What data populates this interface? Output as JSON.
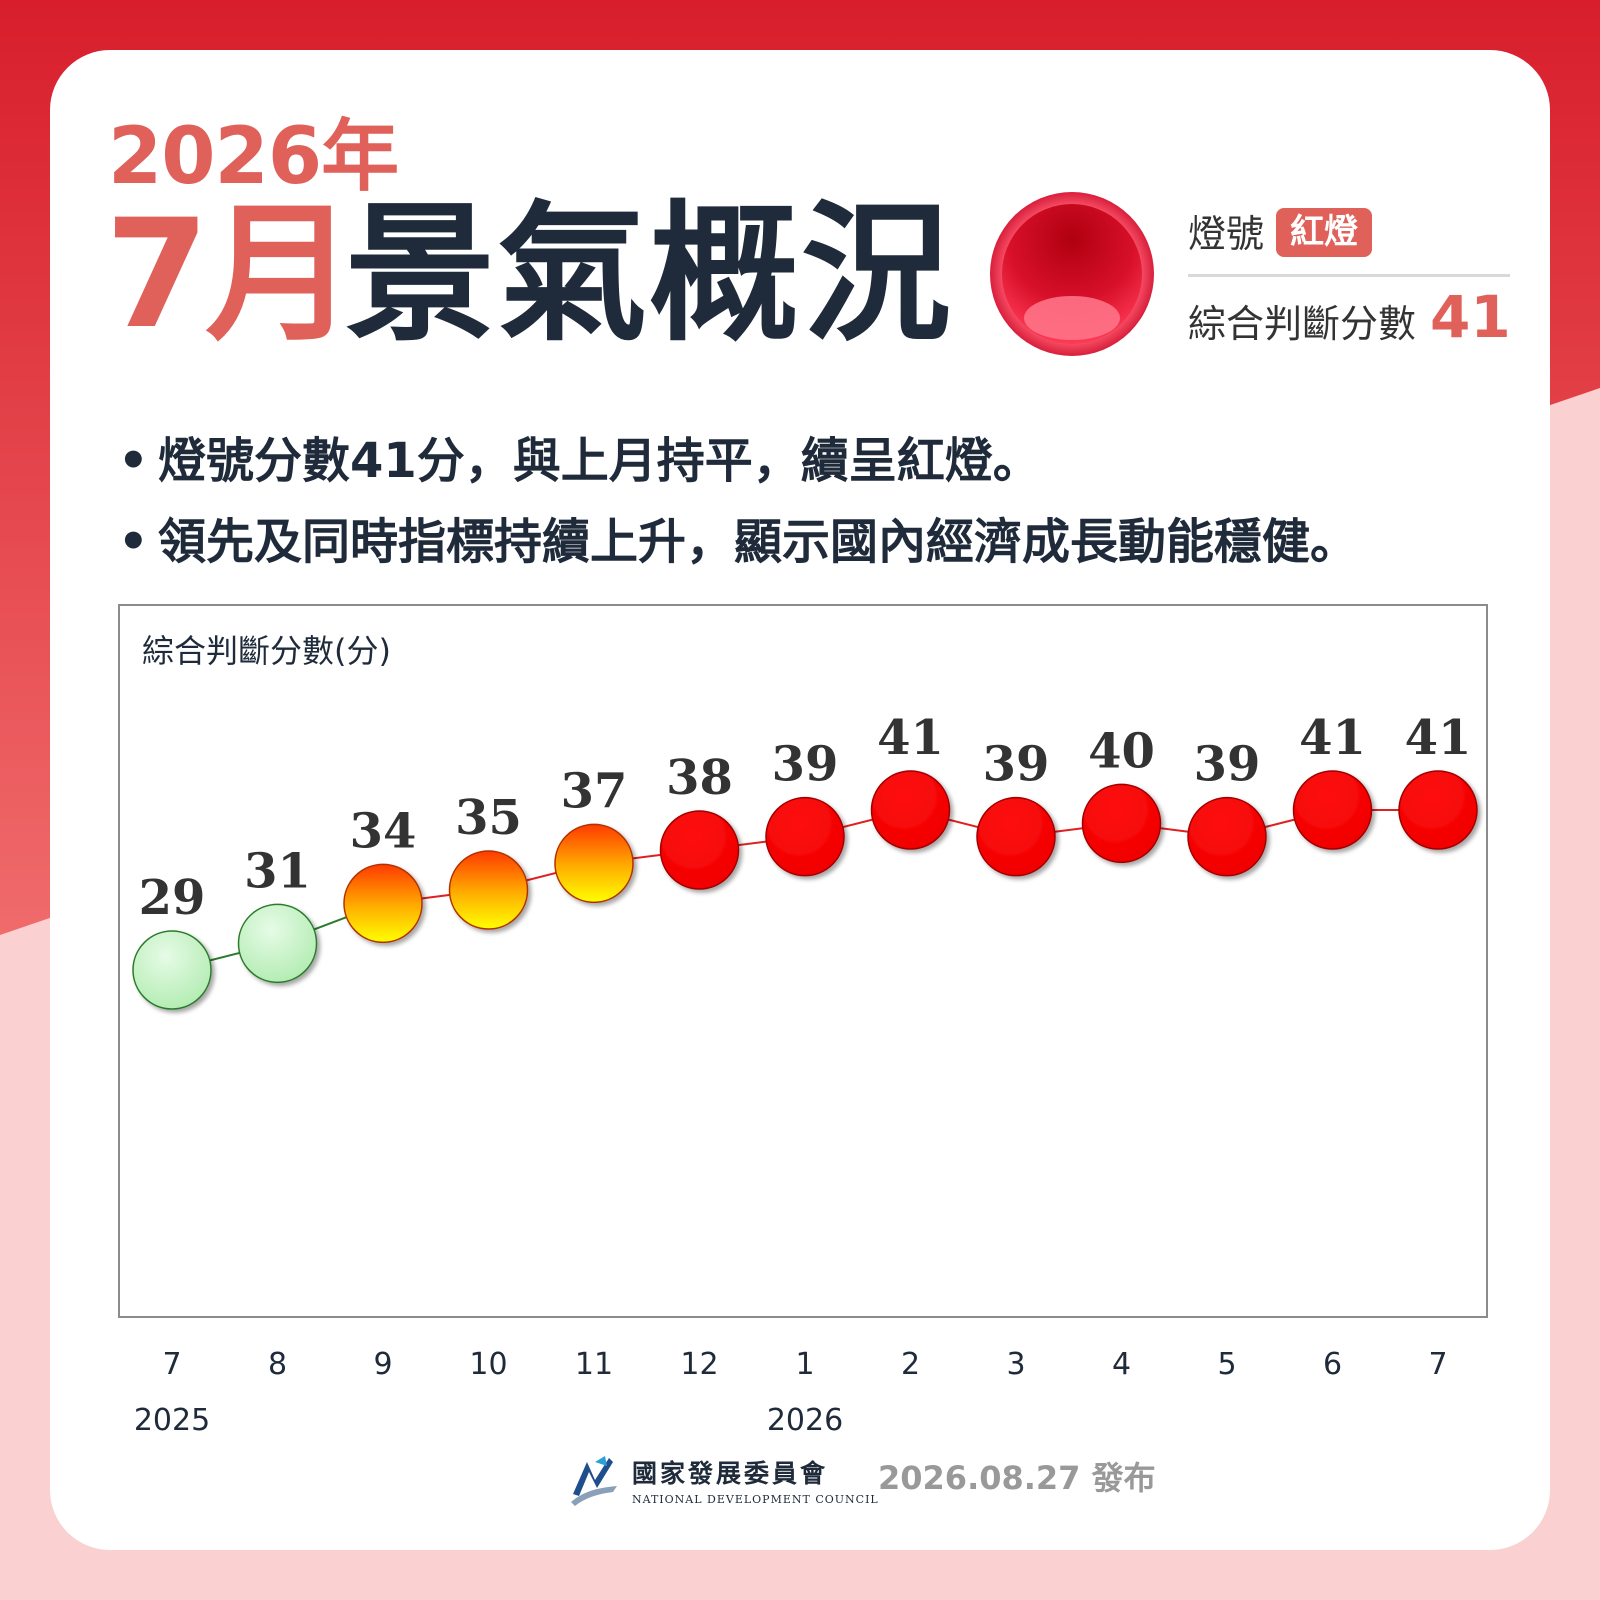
{
  "header": {
    "year_title": "2026年",
    "month_title": "7月",
    "main_title": "景氣概況",
    "lamp_label": "燈號",
    "lamp_value": "紅燈",
    "score_label": "綜合判斷分數",
    "score_value": "41"
  },
  "bullets": [
    "燈號分數41分，與上月持平，續呈紅燈。",
    "領先及同時指標持續上升，顯示國內經濟成長動能穩健。"
  ],
  "chart_data": {
    "type": "line",
    "ylabel": "綜合判斷分數(分)",
    "categories": [
      "7",
      "8",
      "9",
      "10",
      "11",
      "12",
      "1",
      "2",
      "3",
      "4",
      "5",
      "6",
      "7"
    ],
    "year_labels": [
      {
        "label": "2025",
        "index": 0
      },
      {
        "label": "2026",
        "index": 6
      }
    ],
    "values": [
      29,
      31,
      34,
      35,
      37,
      38,
      39,
      41,
      39,
      40,
      39,
      41,
      41
    ],
    "signals": [
      "green",
      "green",
      "yellow-red",
      "yellow-red",
      "yellow-red",
      "red",
      "red",
      "red",
      "red",
      "red",
      "red",
      "red",
      "red"
    ],
    "colors": {
      "green": "#c8f5c8",
      "yellow-red": "#f5a000",
      "red": "#ff0000"
    }
  },
  "footer": {
    "org_name": "國家發展委員會",
    "org_name_en": "NATIONAL DEVELOPMENT COUNCIL",
    "publish_date": "2026.08.27 發布"
  }
}
